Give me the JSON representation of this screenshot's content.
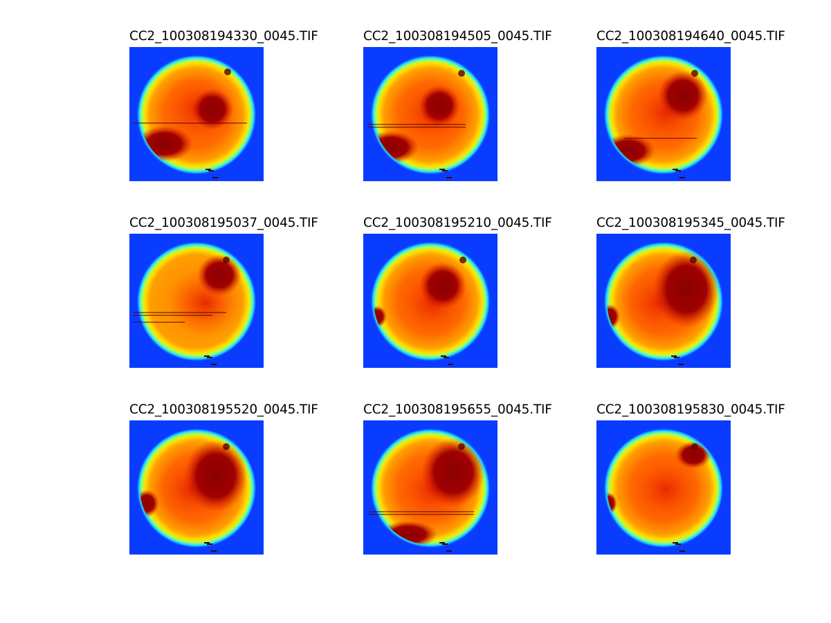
{
  "figure": {
    "panels": [
      {
        "title": "CC2_100308194330_0045.TIF"
      },
      {
        "title": "CC2_100308194505_0045.TIF"
      },
      {
        "title": "CC2_100308194640_0045.TIF"
      },
      {
        "title": "CC2_100308195037_0045.TIF"
      },
      {
        "title": "CC2_100308195210_0045.TIF"
      },
      {
        "title": "CC2_100308195345_0045.TIF"
      },
      {
        "title": "CC2_100308195520_0045.TIF"
      },
      {
        "title": "CC2_100308195655_0045.TIF"
      },
      {
        "title": "CC2_100308195830_0045.TIF"
      }
    ],
    "colormap": "jet",
    "background_color": "#0a3cff"
  }
}
